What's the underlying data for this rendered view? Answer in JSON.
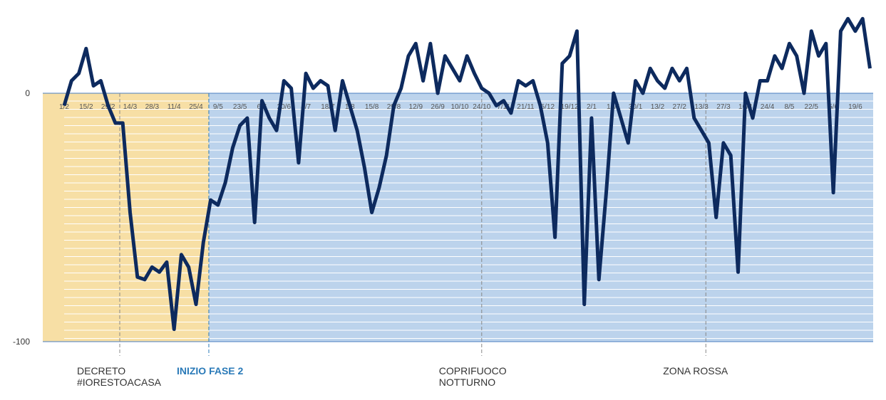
{
  "chart_data": {
    "type": "line",
    "categories": [
      "1/2",
      null,
      null,
      "15/2",
      null,
      null,
      "29/2",
      null,
      null,
      "14/3",
      null,
      null,
      "28/3",
      null,
      null,
      "11/4",
      null,
      null,
      "25/4",
      null,
      null,
      "9/5",
      null,
      null,
      "23/5",
      null,
      null,
      "6/6",
      null,
      null,
      "20/6",
      null,
      null,
      "4/7",
      null,
      null,
      "18/7",
      null,
      null,
      "1/8",
      null,
      null,
      "15/8",
      null,
      null,
      "29/8",
      null,
      null,
      "12/9",
      null,
      null,
      "26/9",
      null,
      null,
      "10/10",
      null,
      null,
      "24/10",
      null,
      null,
      "7/11",
      null,
      null,
      "21/11",
      null,
      null,
      "5/12",
      null,
      null,
      "19/12",
      null,
      null,
      "2/1",
      null,
      null,
      "16/1",
      null,
      null,
      "30/1",
      null,
      null,
      "13/2",
      null,
      null,
      "27/2",
      null,
      null,
      "13/3",
      null,
      null,
      "27/3",
      null,
      null,
      "10/4",
      null,
      null,
      "24/4",
      null,
      null,
      "8/5",
      null,
      null,
      "22/5",
      null,
      null,
      "5/6",
      null,
      null,
      "19/6",
      null,
      null
    ],
    "series": [
      {
        "color": "#0d2a5e",
        "values": [
          -5,
          5,
          8,
          18,
          3,
          5,
          -5,
          -12,
          -12,
          -48,
          -74,
          -75,
          -70,
          -72,
          -68,
          -95,
          -65,
          -70,
          -85,
          -60,
          -43,
          -45,
          -36,
          -22,
          -13,
          -10,
          -52,
          -3,
          -10,
          -15,
          5,
          2,
          -28,
          8,
          2,
          5,
          3,
          -15,
          5,
          -5,
          -15,
          -30,
          -48,
          -38,
          -25,
          -5,
          2,
          15,
          20,
          5,
          20,
          0,
          15,
          10,
          5,
          15,
          8,
          2,
          0,
          -5,
          -3,
          -8,
          5,
          3,
          5,
          -5,
          -20,
          -58,
          12,
          15,
          25,
          -85,
          -10,
          -75,
          -40,
          0,
          -10,
          -20,
          5,
          0,
          10,
          5,
          2,
          10,
          5,
          10,
          -10,
          -15,
          -20,
          -50,
          -20,
          -25,
          -72,
          0,
          -10,
          5,
          5,
          15,
          10,
          20,
          15,
          0,
          25,
          15,
          20,
          -40,
          25,
          30,
          25,
          30,
          10
        ]
      }
    ],
    "ylim": [
      -100,
      37
    ],
    "yticks": [
      -100,
      0
    ],
    "annotations": [
      {
        "x": 7.59,
        "label": [
          "DECRETO",
          "#IORESTOACASA"
        ]
      },
      {
        "x": 19.75,
        "label": [
          "INIZIO FASE 2"
        ]
      },
      {
        "x": 57.0,
        "label": [
          "COPRIFUOCO",
          "NOTTURNO"
        ]
      },
      {
        "x": 87.6,
        "label": [
          "ZONA ROSSA"
        ]
      }
    ]
  }
}
